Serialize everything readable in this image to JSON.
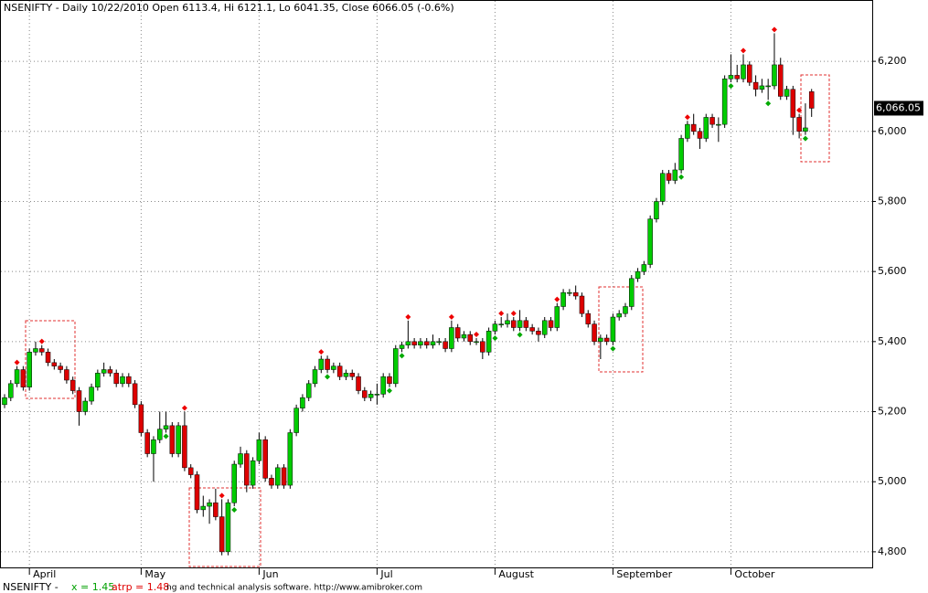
{
  "chart_data": {
    "type": "candlestick",
    "title": "NSENIFTY - Daily 10/22/2010 Open 6113.4, Hi 6121.1, Lo 6041.35, Close 6066.05 (-0.6%)",
    "categories": [
      null,
      null,
      null,
      null,
      "April",
      null,
      null,
      null,
      null,
      null,
      null,
      null,
      null,
      null,
      null,
      null,
      null,
      null,
      null,
      null,
      null,
      null,
      "May",
      null,
      null,
      null,
      null,
      null,
      null,
      null,
      null,
      null,
      null,
      null,
      null,
      null,
      null,
      null,
      null,
      null,
      null,
      "Jun",
      null,
      null,
      null,
      null,
      null,
      null,
      null,
      null,
      null,
      null,
      null,
      null,
      null,
      null,
      null,
      null,
      null,
      null,
      "Jul",
      null,
      null,
      null,
      null,
      null,
      null,
      null,
      null,
      null,
      null,
      null,
      null,
      null,
      null,
      null,
      null,
      null,
      null,
      "August",
      null,
      null,
      null,
      null,
      null,
      null,
      null,
      null,
      null,
      null,
      null,
      null,
      null,
      null,
      null,
      null,
      null,
      null,
      "September",
      null,
      null,
      null,
      null,
      null,
      null,
      null,
      null,
      null,
      null,
      null,
      null,
      null,
      null,
      null,
      null,
      null,
      null,
      "October",
      null,
      null,
      null,
      null,
      null,
      null,
      null,
      null,
      null,
      null,
      null,
      null,
      null
    ],
    "series": [
      {
        "name": "NSENIFTY",
        "up_color": "#00cc00",
        "down_color": "#dd0000",
        "ohlc": [
          [
            5220,
            5250,
            5210,
            5240
          ],
          [
            5240,
            5290,
            5230,
            5280
          ],
          [
            5280,
            5330,
            5270,
            5320
          ],
          [
            5320,
            5330,
            5260,
            5270
          ],
          [
            5270,
            5380,
            5260,
            5370
          ],
          [
            5370,
            5400,
            5360,
            5380
          ],
          [
            5380,
            5390,
            5360,
            5370
          ],
          [
            5370,
            5380,
            5330,
            5340
          ],
          [
            5340,
            5350,
            5320,
            5330
          ],
          [
            5330,
            5340,
            5310,
            5320
          ],
          [
            5320,
            5330,
            5280,
            5290
          ],
          [
            5290,
            5300,
            5250,
            5260
          ],
          [
            5260,
            5270,
            5160,
            5200
          ],
          [
            5200,
            5240,
            5190,
            5230
          ],
          [
            5230,
            5280,
            5220,
            5270
          ],
          [
            5270,
            5320,
            5260,
            5310
          ],
          [
            5310,
            5340,
            5300,
            5320
          ],
          [
            5320,
            5330,
            5300,
            5310
          ],
          [
            5310,
            5320,
            5270,
            5280
          ],
          [
            5280,
            5310,
            5270,
            5300
          ],
          [
            5300,
            5310,
            5270,
            5280
          ],
          [
            5280,
            5290,
            5210,
            5220
          ],
          [
            5220,
            5230,
            5130,
            5140
          ],
          [
            5140,
            5150,
            5070,
            5080
          ],
          [
            5080,
            5130,
            5000,
            5120
          ],
          [
            5120,
            5200,
            5110,
            5150
          ],
          [
            5150,
            5200,
            5140,
            5160
          ],
          [
            5160,
            5170,
            5070,
            5080
          ],
          [
            5080,
            5170,
            5070,
            5160
          ],
          [
            5160,
            5200,
            5030,
            5040
          ],
          [
            5040,
            5050,
            5010,
            5020
          ],
          [
            5020,
            5030,
            4910,
            4920
          ],
          [
            4920,
            4960,
            4900,
            4930
          ],
          [
            4930,
            4950,
            4880,
            4940
          ],
          [
            4940,
            4980,
            4890,
            4900
          ],
          [
            4900,
            4950,
            4790,
            4800
          ],
          [
            4800,
            4950,
            4790,
            4940
          ],
          [
            4940,
            5060,
            4930,
            5050
          ],
          [
            5050,
            5100,
            5040,
            5080
          ],
          [
            5080,
            5090,
            4970,
            4990
          ],
          [
            4990,
            5070,
            4980,
            5060
          ],
          [
            5060,
            5140,
            5050,
            5120
          ],
          [
            5120,
            5130,
            5000,
            5010
          ],
          [
            5010,
            5020,
            4980,
            4990
          ],
          [
            4990,
            5050,
            4980,
            5040
          ],
          [
            5040,
            5050,
            4980,
            4990
          ],
          [
            4990,
            5150,
            4980,
            5140
          ],
          [
            5140,
            5220,
            5130,
            5210
          ],
          [
            5210,
            5250,
            5200,
            5240
          ],
          [
            5240,
            5290,
            5230,
            5280
          ],
          [
            5280,
            5330,
            5270,
            5320
          ],
          [
            5320,
            5360,
            5310,
            5350
          ],
          [
            5350,
            5360,
            5310,
            5320
          ],
          [
            5320,
            5340,
            5310,
            5330
          ],
          [
            5330,
            5340,
            5290,
            5300
          ],
          [
            5300,
            5320,
            5290,
            5310
          ],
          [
            5310,
            5320,
            5290,
            5300
          ],
          [
            5300,
            5310,
            5250,
            5260
          ],
          [
            5260,
            5270,
            5230,
            5240
          ],
          [
            5240,
            5260,
            5230,
            5250
          ],
          [
            5250,
            5280,
            5220,
            5250
          ],
          [
            5250,
            5310,
            5240,
            5300
          ],
          [
            5300,
            5310,
            5270,
            5280
          ],
          [
            5280,
            5390,
            5270,
            5380
          ],
          [
            5380,
            5400,
            5370,
            5390
          ],
          [
            5390,
            5460,
            5380,
            5400
          ],
          [
            5400,
            5410,
            5380,
            5390
          ],
          [
            5390,
            5410,
            5380,
            5400
          ],
          [
            5400,
            5410,
            5380,
            5390
          ],
          [
            5390,
            5420,
            5380,
            5400
          ],
          [
            5400,
            5410,
            5390,
            5400
          ],
          [
            5400,
            5410,
            5370,
            5380
          ],
          [
            5380,
            5460,
            5370,
            5440
          ],
          [
            5440,
            5450,
            5400,
            5410
          ],
          [
            5410,
            5430,
            5400,
            5420
          ],
          [
            5420,
            5430,
            5390,
            5400
          ],
          [
            5400,
            5410,
            5390,
            5400
          ],
          [
            5400,
            5410,
            5350,
            5370
          ],
          [
            5370,
            5440,
            5360,
            5430
          ],
          [
            5430,
            5460,
            5420,
            5450
          ],
          [
            5450,
            5470,
            5440,
            5450
          ],
          [
            5450,
            5480,
            5440,
            5460
          ],
          [
            5460,
            5470,
            5430,
            5440
          ],
          [
            5440,
            5490,
            5430,
            5460
          ],
          [
            5460,
            5470,
            5430,
            5440
          ],
          [
            5440,
            5450,
            5420,
            5430
          ],
          [
            5430,
            5440,
            5400,
            5420
          ],
          [
            5420,
            5470,
            5410,
            5460
          ],
          [
            5460,
            5470,
            5430,
            5440
          ],
          [
            5440,
            5510,
            5430,
            5500
          ],
          [
            5500,
            5550,
            5490,
            5540
          ],
          [
            5540,
            5550,
            5530,
            5540
          ],
          [
            5540,
            5560,
            5520,
            5530
          ],
          [
            5530,
            5540,
            5470,
            5480
          ],
          [
            5480,
            5490,
            5440,
            5450
          ],
          [
            5450,
            5460,
            5390,
            5400
          ],
          [
            5400,
            5420,
            5350,
            5410
          ],
          [
            5410,
            5420,
            5390,
            5400
          ],
          [
            5400,
            5480,
            5390,
            5470
          ],
          [
            5470,
            5490,
            5460,
            5480
          ],
          [
            5480,
            5510,
            5470,
            5500
          ],
          [
            5500,
            5590,
            5490,
            5580
          ],
          [
            5580,
            5610,
            5570,
            5600
          ],
          [
            5600,
            5630,
            5590,
            5620
          ],
          [
            5620,
            5760,
            5610,
            5750
          ],
          [
            5750,
            5810,
            5740,
            5800
          ],
          [
            5800,
            5890,
            5790,
            5880
          ],
          [
            5880,
            5890,
            5850,
            5860
          ],
          [
            5860,
            5910,
            5850,
            5890
          ],
          [
            5890,
            5990,
            5880,
            5980
          ],
          [
            5980,
            6030,
            5970,
            6020
          ],
          [
            6020,
            6050,
            5990,
            6000
          ],
          [
            6000,
            6010,
            5950,
            5980
          ],
          [
            5980,
            6050,
            5970,
            6040
          ],
          [
            6040,
            6050,
            6010,
            6020
          ],
          [
            6020,
            6040,
            5970,
            6020
          ],
          [
            6020,
            6160,
            6010,
            6150
          ],
          [
            6150,
            6220,
            6140,
            6160
          ],
          [
            6160,
            6190,
            6140,
            6150
          ],
          [
            6150,
            6220,
            6140,
            6190
          ],
          [
            6190,
            6200,
            6130,
            6140
          ],
          [
            6140,
            6160,
            6100,
            6120
          ],
          [
            6120,
            6150,
            6110,
            6130
          ],
          [
            6130,
            6150,
            6090,
            6130
          ],
          [
            6130,
            6280,
            6120,
            6190
          ],
          [
            6190,
            6210,
            6090,
            6100
          ],
          [
            6100,
            6130,
            6090,
            6120
          ],
          [
            6120,
            6130,
            5990,
            6040
          ],
          [
            6040,
            6050,
            5980,
            6000
          ],
          [
            6000,
            6080,
            5990,
            6010
          ],
          [
            6113.4,
            6121.1,
            6041.35,
            6066.05
          ]
        ]
      }
    ],
    "sell_signals": [
      2,
      6,
      29,
      35,
      51,
      65,
      72,
      76,
      80,
      82,
      89,
      110,
      119,
      124,
      128
    ],
    "buy_signals": [
      26,
      37,
      52,
      62,
      64,
      79,
      83,
      98,
      109,
      117,
      123,
      129
    ],
    "sell_color": "#ee0000",
    "buy_color": "#00aa00",
    "ylim": [
      4758,
      6375
    ],
    "yticks": [
      {
        "value": 4800,
        "label": "4,800"
      },
      {
        "value": 5000,
        "label": "5,000"
      },
      {
        "value": 5200,
        "label": "5,200"
      },
      {
        "value": 5400,
        "label": "5,400"
      },
      {
        "value": 5600,
        "label": "5,600"
      },
      {
        "value": 5800,
        "label": "5,800"
      },
      {
        "value": 6000,
        "label": "6,000"
      },
      {
        "value": 6200,
        "label": "6,200"
      }
    ],
    "last_price": {
      "value": 6066.05,
      "label": "6,066.05"
    },
    "grid": true,
    "footer": {
      "ticker": "NSENIFTY -",
      "x_label": "x = 1.45",
      "atrp_label": "atrp = 1.48",
      "watermark": "ng and technical analysis software. http://www.amibroker.com"
    }
  }
}
